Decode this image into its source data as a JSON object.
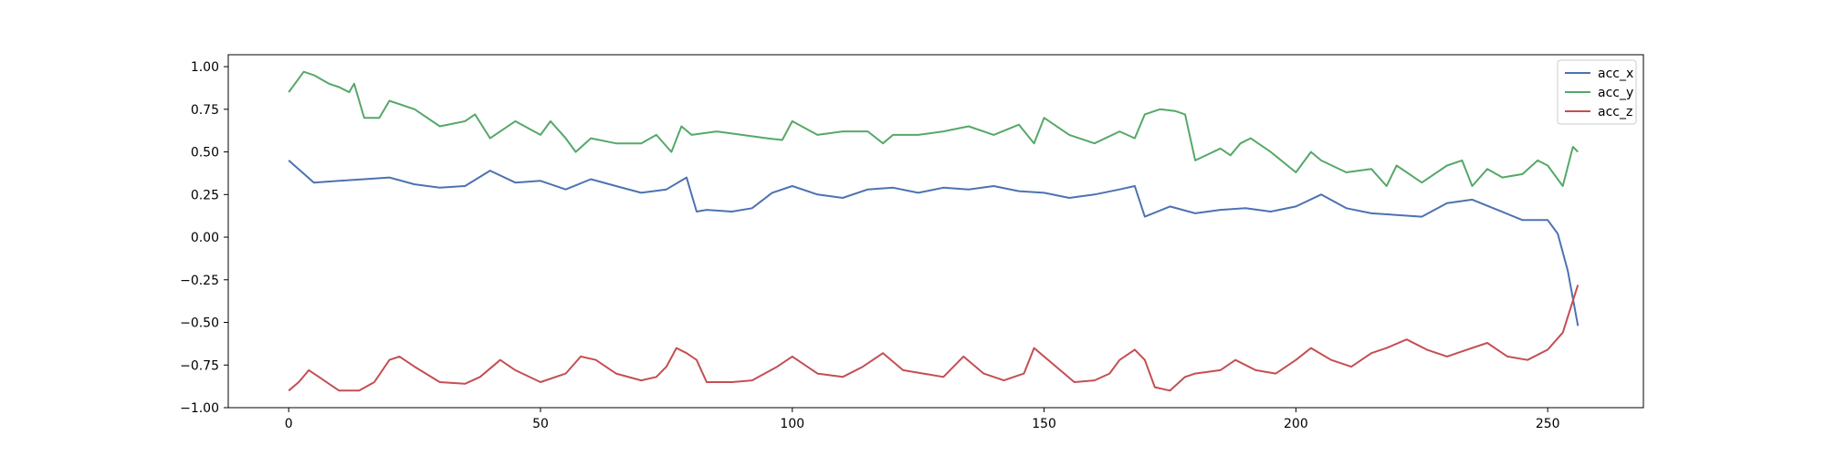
{
  "chart_data": {
    "type": "line",
    "title": "",
    "xlabel": "",
    "ylabel": "",
    "xlim": [
      -12,
      269
    ],
    "ylim": [
      -1.0,
      1.07
    ],
    "xticks": [
      0,
      50,
      100,
      150,
      200,
      250
    ],
    "xtick_labels": [
      "0",
      "50",
      "100",
      "150",
      "200",
      "250"
    ],
    "yticks": [
      -1.0,
      -0.75,
      -0.5,
      -0.25,
      0.0,
      0.25,
      0.5,
      0.75,
      1.0
    ],
    "ytick_labels": [
      "−1.00",
      "−0.75",
      "−0.50",
      "−0.25",
      "0.00",
      "0.25",
      "0.50",
      "0.75",
      "1.00"
    ],
    "grid": false,
    "legend_position": "top-right",
    "colors": {
      "acc_x": "#4c72b0",
      "acc_y": "#55a868",
      "acc_z": "#c44e52"
    },
    "series": [
      {
        "name": "acc_x",
        "x": [
          0,
          5,
          10,
          15,
          20,
          25,
          30,
          35,
          40,
          45,
          50,
          55,
          60,
          65,
          70,
          75,
          79,
          81,
          83,
          88,
          92,
          96,
          100,
          105,
          110,
          115,
          120,
          125,
          130,
          135,
          140,
          145,
          150,
          155,
          160,
          165,
          168,
          170,
          175,
          180,
          185,
          190,
          195,
          200,
          205,
          210,
          215,
          220,
          225,
          230,
          235,
          240,
          245,
          250,
          252,
          254,
          256
        ],
        "values": [
          0.45,
          0.32,
          0.33,
          0.34,
          0.35,
          0.31,
          0.29,
          0.3,
          0.39,
          0.32,
          0.33,
          0.28,
          0.34,
          0.3,
          0.26,
          0.28,
          0.35,
          0.15,
          0.16,
          0.15,
          0.17,
          0.26,
          0.3,
          0.25,
          0.23,
          0.28,
          0.29,
          0.26,
          0.29,
          0.28,
          0.3,
          0.27,
          0.26,
          0.23,
          0.25,
          0.28,
          0.3,
          0.12,
          0.18,
          0.14,
          0.16,
          0.17,
          0.15,
          0.18,
          0.25,
          0.17,
          0.14,
          0.13,
          0.12,
          0.2,
          0.22,
          0.16,
          0.1,
          0.1,
          0.02,
          -0.2,
          -0.52
        ]
      },
      {
        "name": "acc_y",
        "x": [
          0,
          3,
          5,
          8,
          10,
          12,
          13,
          15,
          18,
          20,
          25,
          30,
          35,
          37,
          40,
          45,
          50,
          52,
          55,
          57,
          60,
          65,
          70,
          73,
          76,
          78,
          80,
          85,
          90,
          95,
          98,
          100,
          105,
          110,
          115,
          118,
          120,
          125,
          130,
          135,
          140,
          145,
          148,
          150,
          155,
          160,
          165,
          168,
          170,
          173,
          176,
          178,
          180,
          185,
          187,
          189,
          191,
          195,
          200,
          203,
          205,
          210,
          215,
          218,
          220,
          225,
          230,
          233,
          235,
          238,
          241,
          245,
          248,
          250,
          253,
          255,
          256
        ],
        "values": [
          0.85,
          0.97,
          0.95,
          0.9,
          0.88,
          0.85,
          0.9,
          0.7,
          0.7,
          0.8,
          0.75,
          0.65,
          0.68,
          0.72,
          0.58,
          0.68,
          0.6,
          0.68,
          0.58,
          0.5,
          0.58,
          0.55,
          0.55,
          0.6,
          0.5,
          0.65,
          0.6,
          0.62,
          0.6,
          0.58,
          0.57,
          0.68,
          0.6,
          0.62,
          0.62,
          0.55,
          0.6,
          0.6,
          0.62,
          0.65,
          0.6,
          0.66,
          0.55,
          0.7,
          0.6,
          0.55,
          0.62,
          0.58,
          0.72,
          0.75,
          0.74,
          0.72,
          0.45,
          0.52,
          0.48,
          0.55,
          0.58,
          0.5,
          0.38,
          0.5,
          0.45,
          0.38,
          0.4,
          0.3,
          0.42,
          0.32,
          0.42,
          0.45,
          0.3,
          0.4,
          0.35,
          0.37,
          0.45,
          0.42,
          0.3,
          0.53,
          0.5
        ]
      },
      {
        "name": "acc_z",
        "x": [
          0,
          2,
          4,
          6,
          8,
          10,
          14,
          17,
          20,
          22,
          25,
          30,
          35,
          38,
          42,
          45,
          50,
          55,
          58,
          61,
          65,
          70,
          73,
          75,
          77,
          79,
          81,
          83,
          88,
          92,
          97,
          100,
          105,
          110,
          114,
          118,
          122,
          126,
          130,
          134,
          138,
          142,
          146,
          148,
          152,
          156,
          160,
          163,
          165,
          168,
          170,
          172,
          175,
          178,
          180,
          185,
          188,
          192,
          196,
          200,
          203,
          207,
          211,
          215,
          218,
          222,
          226,
          230,
          234,
          238,
          242,
          246,
          250,
          253,
          256
        ],
        "values": [
          -0.9,
          -0.85,
          -0.78,
          -0.82,
          -0.86,
          -0.9,
          -0.9,
          -0.85,
          -0.72,
          -0.7,
          -0.76,
          -0.85,
          -0.86,
          -0.82,
          -0.72,
          -0.78,
          -0.85,
          -0.8,
          -0.7,
          -0.72,
          -0.8,
          -0.84,
          -0.82,
          -0.76,
          -0.65,
          -0.68,
          -0.72,
          -0.85,
          -0.85,
          -0.84,
          -0.76,
          -0.7,
          -0.8,
          -0.82,
          -0.76,
          -0.68,
          -0.78,
          -0.8,
          -0.82,
          -0.7,
          -0.8,
          -0.84,
          -0.8,
          -0.65,
          -0.75,
          -0.85,
          -0.84,
          -0.8,
          -0.72,
          -0.66,
          -0.72,
          -0.88,
          -0.9,
          -0.82,
          -0.8,
          -0.78,
          -0.72,
          -0.78,
          -0.8,
          -0.72,
          -0.65,
          -0.72,
          -0.76,
          -0.68,
          -0.65,
          -0.6,
          -0.66,
          -0.7,
          -0.66,
          -0.62,
          -0.7,
          -0.72,
          -0.66,
          -0.56,
          -0.28
        ]
      }
    ]
  }
}
